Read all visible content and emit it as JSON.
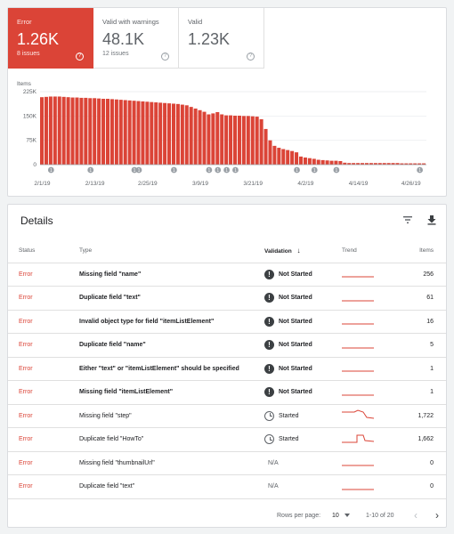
{
  "tiles": [
    {
      "label": "Error",
      "value": "1.26K",
      "sub": "8 issues",
      "help": "?"
    },
    {
      "label": "Valid with warnings",
      "value": "48.1K",
      "sub": "12 issues",
      "help": "?"
    },
    {
      "label": "Valid",
      "value": "1.23K",
      "sub": "",
      "help": "?"
    }
  ],
  "chart_data": {
    "type": "bar",
    "ylabel": "Items",
    "yticks": [
      "225K",
      "150K",
      "75K",
      "0"
    ],
    "ytick_values": [
      225000,
      150000,
      75000,
      0
    ],
    "ylim": [
      0,
      225000
    ],
    "xticks": [
      "2/1/19",
      "2/13/19",
      "2/25/19",
      "3/9/19",
      "3/21/19",
      "4/2/19",
      "4/14/19",
      "4/26/19"
    ],
    "xtick_days": [
      0,
      12,
      24,
      36,
      48,
      60,
      72,
      84
    ],
    "bar_color": "#db4437",
    "annotation_days": [
      2,
      11,
      21,
      22,
      30,
      38,
      40,
      42,
      44,
      58,
      62,
      67,
      86
    ],
    "annotation_label": "1",
    "values": [
      208000,
      209000,
      210000,
      210000,
      210000,
      209000,
      208000,
      207000,
      207000,
      206000,
      206000,
      205000,
      205000,
      204000,
      203000,
      203000,
      202000,
      201000,
      200000,
      199000,
      198000,
      197000,
      196000,
      195000,
      194000,
      193000,
      192000,
      191000,
      190000,
      189000,
      188000,
      187000,
      185000,
      183000,
      178000,
      173000,
      168000,
      163000,
      155000,
      158000,
      162000,
      155000,
      152000,
      152000,
      151000,
      151000,
      150000,
      150000,
      149000,
      148000,
      140000,
      110000,
      75000,
      58000,
      52000,
      48000,
      45000,
      42000,
      38000,
      25000,
      22000,
      20000,
      18000,
      15000,
      14000,
      13000,
      12000,
      12000,
      11000,
      6000,
      5000,
      5000,
      5000,
      5000,
      5000,
      5000,
      5000,
      5000,
      5000,
      5000,
      5000,
      5000,
      4000,
      4000,
      4000,
      4000,
      4000,
      4000
    ]
  },
  "details": {
    "title": "Details",
    "columns": {
      "status": "Status",
      "type": "Type",
      "validation": "Validation",
      "validation_sort": "↓",
      "trend": "Trend",
      "items": "Items"
    },
    "rows": [
      {
        "status": "Error",
        "type": "Missing field \"name\"",
        "validation": "Not Started",
        "vicon": "!",
        "items": "256",
        "trend": "flat"
      },
      {
        "status": "Error",
        "type": "Duplicate field \"text\"",
        "validation": "Not Started",
        "vicon": "!",
        "items": "61",
        "trend": "flat"
      },
      {
        "status": "Error",
        "type": "Invalid object type for field \"itemListElement\"",
        "validation": "Not Started",
        "vicon": "!",
        "items": "16",
        "trend": "flat"
      },
      {
        "status": "Error",
        "type": "Duplicate field \"name\"",
        "validation": "Not Started",
        "vicon": "!",
        "items": "5",
        "trend": "flat"
      },
      {
        "status": "Error",
        "type": "Either \"text\" or \"itemListElement\" should be specified",
        "validation": "Not Started",
        "vicon": "!",
        "items": "1",
        "trend": "flat"
      },
      {
        "status": "Error",
        "type": "Missing field \"itemListElement\"",
        "validation": "Not Started",
        "vicon": "!",
        "items": "1",
        "trend": "flat"
      },
      {
        "status": "Error",
        "type": "Missing field \"step\"",
        "validation": "Started",
        "vicon": "",
        "items": "1,722",
        "trend": "drop"
      },
      {
        "status": "Error",
        "type": "Duplicate field \"HowTo\"",
        "validation": "Started",
        "vicon": "",
        "items": "1,662",
        "trend": "spike"
      },
      {
        "status": "Error",
        "type": "Missing field \"thumbnailUrl\"",
        "validation": "N/A",
        "vicon": "",
        "items": "0",
        "trend": "flat"
      },
      {
        "status": "Error",
        "type": "Duplicate field \"text\"",
        "validation": "N/A",
        "vicon": "",
        "items": "0",
        "trend": "flat"
      }
    ],
    "pagination": {
      "rows_per_page_label": "Rows per page:",
      "rows_per_page": "10",
      "range": "1-10 of 20",
      "prev": "‹",
      "next": "›"
    }
  }
}
